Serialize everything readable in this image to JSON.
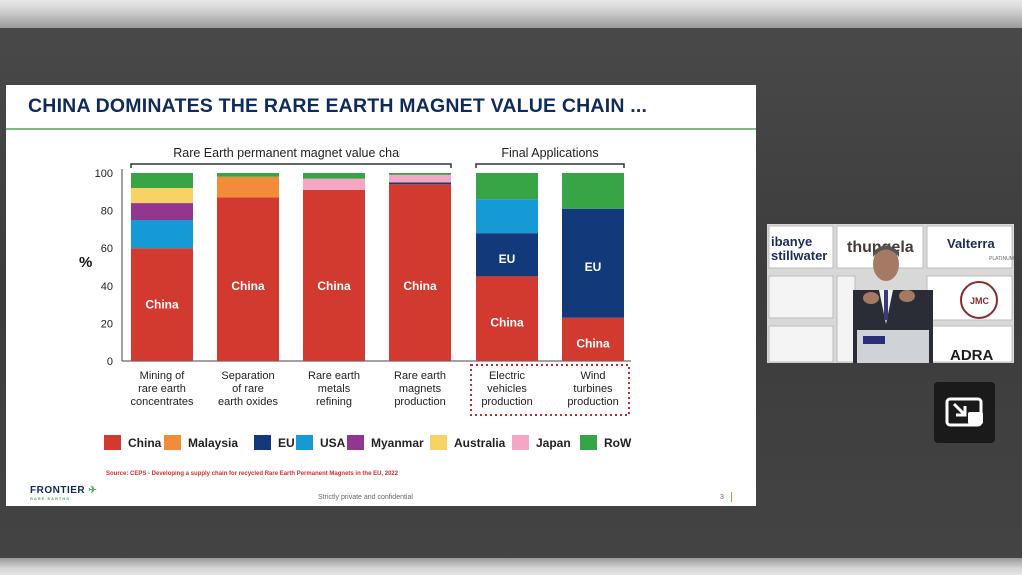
{
  "slide": {
    "title": "CHINA DOMINATES THE RARE EARTH MAGNET VALUE CHAIN ...",
    "source": "Source: CEPS - Developing a supply chain for recycled Rare Earth Permanent Magnets in the EU, 2022",
    "logo_main": "FRONTIER",
    "logo_sub": "RARE EARTHS",
    "confidential": "Strictly private and confidential",
    "page_number": "3"
  },
  "chart_data": {
    "type": "bar",
    "stacked": true,
    "ylabel": "%",
    "ylim": [
      0,
      100
    ],
    "yticks": [
      0,
      20,
      40,
      60,
      80,
      100
    ],
    "group_labels": [
      "Rare Earth permanent magnet value chain",
      "Final Applications"
    ],
    "categories": [
      [
        "Mining of",
        "rare earth",
        "concentrates"
      ],
      [
        "Separation",
        "of rare",
        "earth oxides"
      ],
      [
        "Rare earth",
        "metals",
        "refining"
      ],
      [
        "Rare earth",
        "magnets",
        "production"
      ],
      [
        "Electric",
        "vehicles",
        "production"
      ],
      [
        "Wind",
        "turbines",
        "production"
      ]
    ],
    "series": [
      {
        "name": "China",
        "color": "#d33a2f",
        "values": [
          60,
          87,
          91,
          94,
          45,
          23
        ]
      },
      {
        "name": "Malaysia",
        "color": "#f28c38",
        "values": [
          0,
          11,
          0,
          0,
          0,
          0
        ]
      },
      {
        "name": "EU",
        "color": "#123a7a",
        "values": [
          0,
          0,
          0,
          1,
          23,
          58
        ]
      },
      {
        "name": "USA",
        "color": "#159ad6",
        "values": [
          15,
          0,
          0,
          0,
          18,
          0
        ]
      },
      {
        "name": "Myanmar",
        "color": "#92368f",
        "values": [
          9,
          0,
          0,
          0,
          0,
          0
        ]
      },
      {
        "name": "Australia",
        "color": "#f7d264",
        "values": [
          8,
          0,
          0,
          0,
          0,
          0
        ]
      },
      {
        "name": "Japan",
        "color": "#f4a6c4",
        "values": [
          0,
          0,
          6,
          4,
          0,
          0
        ]
      },
      {
        "name": "RoW",
        "color": "#37a546",
        "values": [
          8,
          2,
          3,
          1,
          14,
          19
        ]
      }
    ],
    "bar_labels": [
      {
        "bar": 0,
        "series": "China",
        "text": "China"
      },
      {
        "bar": 1,
        "series": "China",
        "text": "China"
      },
      {
        "bar": 2,
        "series": "China",
        "text": "China"
      },
      {
        "bar": 3,
        "series": "China",
        "text": "China"
      },
      {
        "bar": 4,
        "series": "China",
        "text": "China"
      },
      {
        "bar": 4,
        "series": "EU",
        "text": "EU"
      },
      {
        "bar": 5,
        "series": "China",
        "text": "China"
      },
      {
        "bar": 5,
        "series": "EU",
        "text": "EU"
      }
    ],
    "highlighted_bars": [
      4,
      5
    ],
    "legend_position": "bottom"
  },
  "video": {
    "banners": [
      "ibanye",
      "stillwater",
      "thungela",
      "Valterra",
      "PLATINUM",
      "JMC",
      "ADRA"
    ]
  },
  "controls": {
    "pip_icon": "picture-in-picture-exit-icon"
  }
}
